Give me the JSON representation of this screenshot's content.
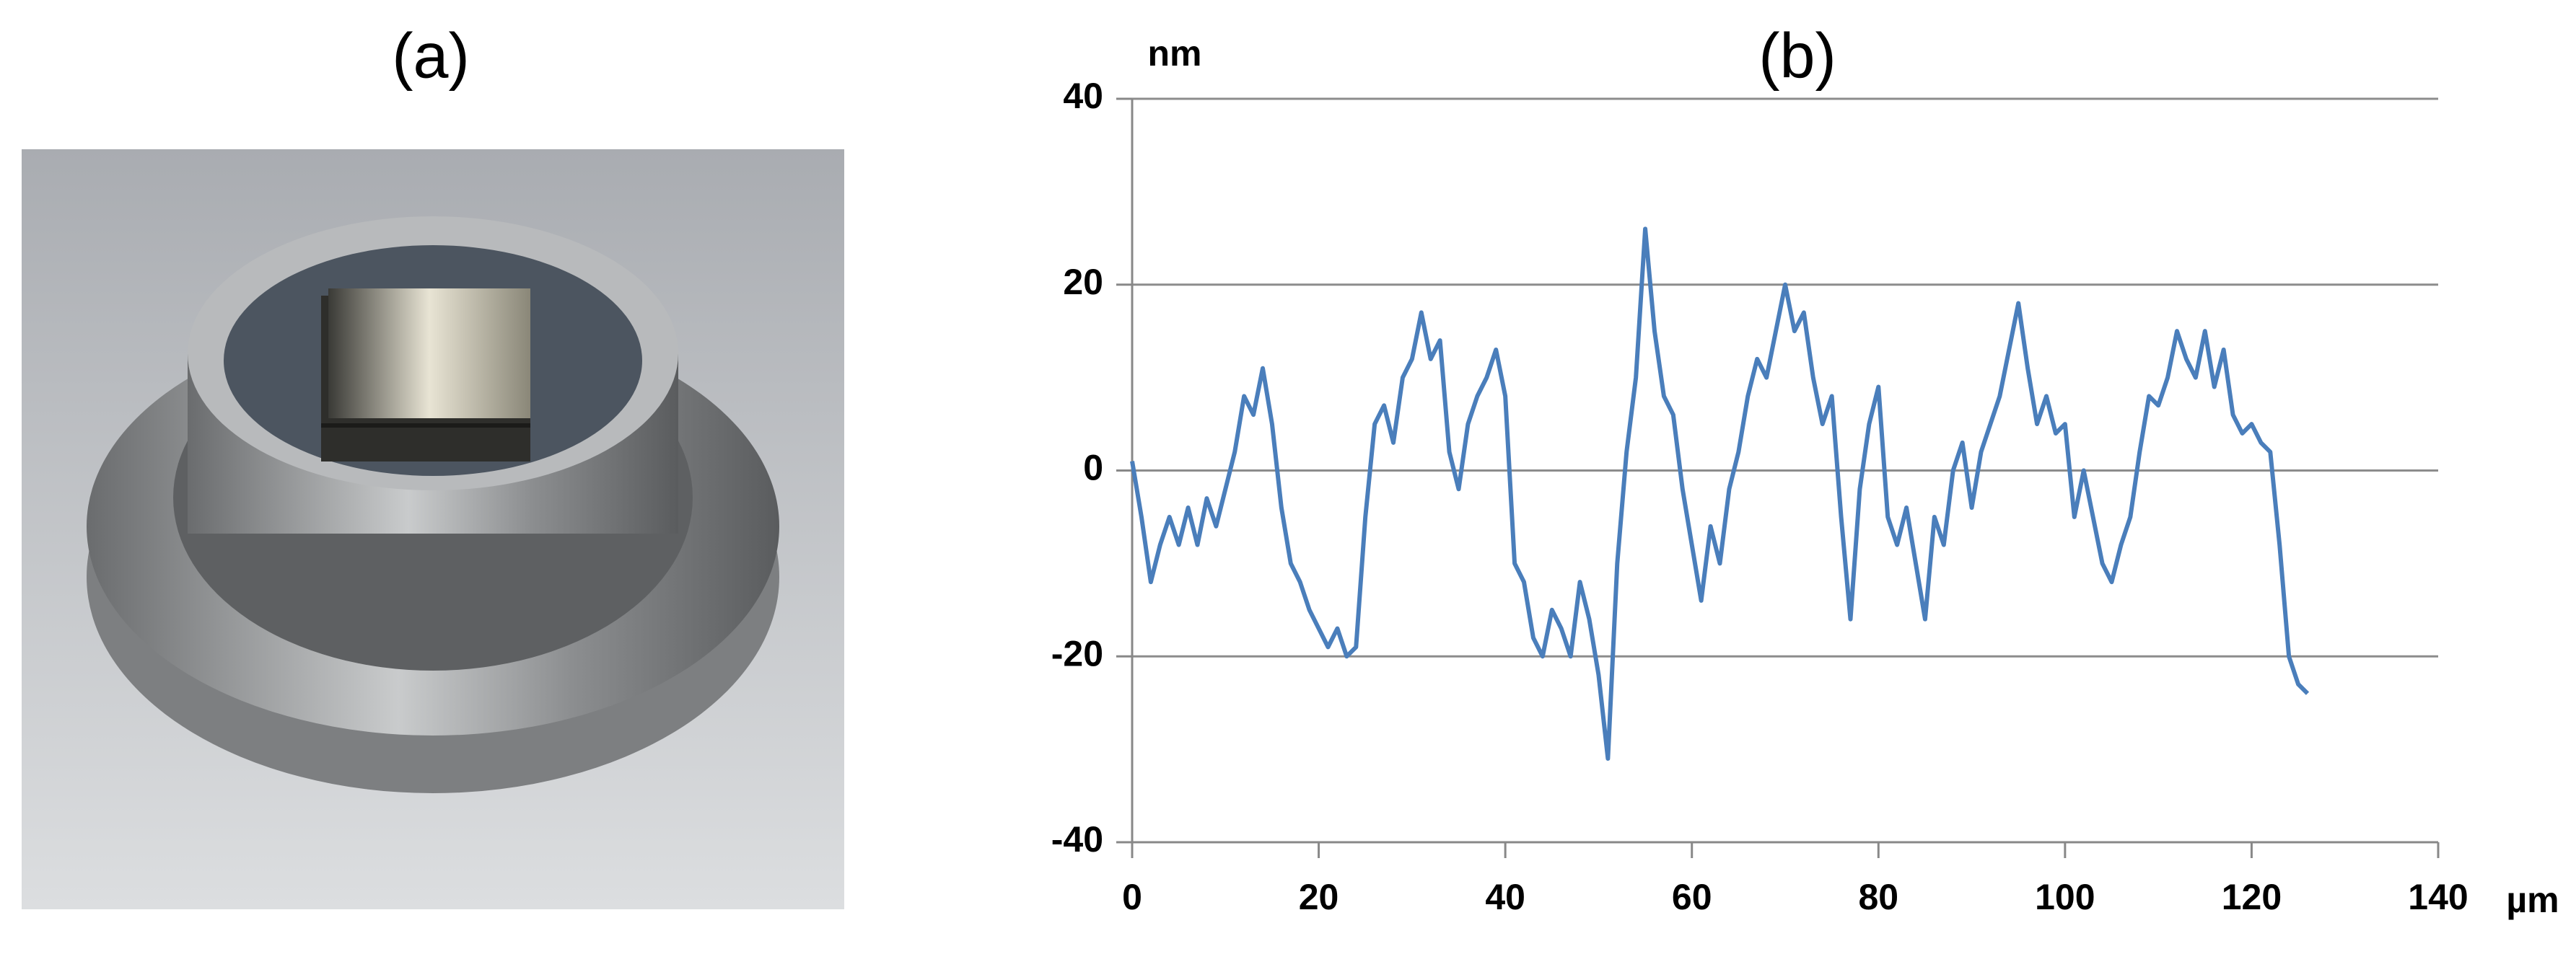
{
  "panel_a": {
    "title": "(a)"
  },
  "chart_data": {
    "type": "line",
    "title": "(b)",
    "y_label": "nm",
    "x_label": "µm",
    "x": [
      0,
      1,
      2,
      3,
      4,
      5,
      6,
      7,
      8,
      9,
      10,
      11,
      12,
      13,
      14,
      15,
      16,
      17,
      18,
      19,
      20,
      21,
      22,
      23,
      24,
      25,
      26,
      27,
      28,
      29,
      30,
      31,
      32,
      33,
      34,
      35,
      36,
      37,
      38,
      39,
      40,
      41,
      42,
      43,
      44,
      45,
      46,
      47,
      48,
      49,
      50,
      51,
      52,
      53,
      54,
      55,
      56,
      57,
      58,
      59,
      60,
      61,
      62,
      63,
      64,
      65,
      66,
      67,
      68,
      69,
      70,
      71,
      72,
      73,
      74,
      75,
      76,
      77,
      78,
      79,
      80,
      81,
      82,
      83,
      84,
      85,
      86,
      87,
      88,
      89,
      90,
      91,
      92,
      93,
      94,
      95,
      96,
      97,
      98,
      99,
      100,
      101,
      102,
      103,
      104,
      105,
      106,
      107,
      108,
      109,
      110,
      111,
      112,
      113,
      114,
      115,
      116,
      117,
      118,
      119,
      120,
      121,
      122,
      123,
      124,
      125,
      126
    ],
    "series": [
      {
        "color": "#4a7ebb",
        "values": [
          1,
          -5,
          -12,
          -8,
          -5,
          -8,
          -4,
          -8,
          -3,
          -6,
          -2,
          2,
          8,
          6,
          11,
          5,
          -4,
          -10,
          -12,
          -15,
          -17,
          -19,
          -17,
          -20,
          -19,
          -5,
          5,
          7,
          3,
          10,
          12,
          17,
          12,
          14,
          2,
          -2,
          5,
          8,
          10,
          13,
          8,
          -10,
          -12,
          -18,
          -20,
          -15,
          -17,
          -20,
          -12,
          -16,
          -22,
          -31,
          -10,
          2,
          10,
          26,
          15,
          8,
          6,
          -2,
          -8,
          -14,
          -6,
          -10,
          -2,
          2,
          8,
          12,
          10,
          15,
          20,
          15,
          17,
          10,
          5,
          8,
          -5,
          -16,
          -2,
          5,
          9,
          -5,
          -8,
          -4,
          -10,
          -16,
          -5,
          -8,
          0,
          3,
          -4,
          2,
          5,
          8,
          13,
          18,
          11,
          5,
          8,
          4,
          5,
          -5,
          0,
          -5,
          -10,
          -12,
          -8,
          -5,
          2,
          8,
          7,
          10,
          15,
          12,
          10,
          15,
          9,
          13,
          6,
          4,
          5,
          3,
          2,
          -8,
          -20,
          -23,
          -24
        ]
      }
    ],
    "xlim": [
      0,
      140
    ],
    "xticks": [
      0,
      20,
      40,
      60,
      80,
      100,
      120,
      140
    ],
    "ylim": [
      -40,
      40
    ],
    "yticks": [
      -40,
      -20,
      0,
      20,
      40
    ],
    "grid": true
  }
}
